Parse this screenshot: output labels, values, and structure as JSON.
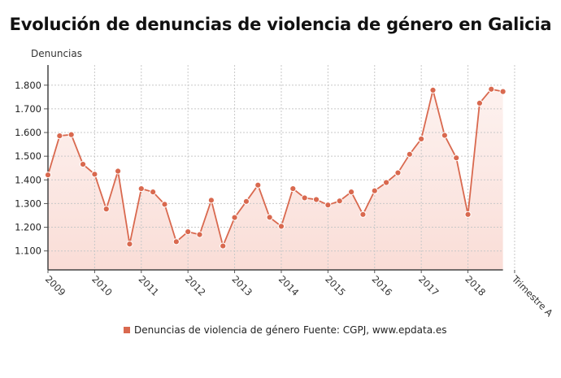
{
  "chart_data": {
    "type": "area",
    "title": "Evolución de denuncias de violencia de género en Galicia",
    "ylabel": "Denuncias",
    "xlabel": "",
    "x_tick_labels": [
      "2009",
      "2010",
      "2011",
      "2012",
      "2013",
      "2014",
      "2015",
      "2016",
      "2017",
      "2018",
      "Trimestre A"
    ],
    "y_tick_labels": [
      "1.100",
      "1.200",
      "1.300",
      "1.400",
      "1.500",
      "1.600",
      "1.700",
      "1.800"
    ],
    "y_ticks": [
      1100,
      1200,
      1300,
      1400,
      1500,
      1600,
      1700,
      1800
    ],
    "ylim": [
      1020,
      1885
    ],
    "grid": true,
    "legend_position": "bottom",
    "series": [
      {
        "name": "Denuncias de violencia de género",
        "color": "#d9694f",
        "x": [
          "2009 T1",
          "2009 T2",
          "2009 T3",
          "2009 T4",
          "2010 T1",
          "2010 T2",
          "2010 T3",
          "2010 T4",
          "2011 T1",
          "2011 T2",
          "2011 T3",
          "2011 T4",
          "2012 T1",
          "2012 T2",
          "2012 T3",
          "2012 T4",
          "2013 T1",
          "2013 T2",
          "2013 T3",
          "2013 T4",
          "2014 T1",
          "2014 T2",
          "2014 T3",
          "2014 T4",
          "2015 T1",
          "2015 T2",
          "2015 T3",
          "2015 T4",
          "2016 T1",
          "2016 T2",
          "2016 T3",
          "2016 T4",
          "2017 T1",
          "2017 T2",
          "2017 T3",
          "2017 T4",
          "2018 T1",
          "2018 T2",
          "2018 T3",
          "2018 T4"
        ],
        "values": [
          1421,
          1586,
          1591,
          1466,
          1424,
          1277,
          1437,
          1129,
          1363,
          1349,
          1297,
          1139,
          1181,
          1169,
          1314,
          1121,
          1241,
          1309,
          1378,
          1242,
          1204,
          1363,
          1324,
          1317,
          1294,
          1311,
          1349,
          1254,
          1354,
          1389,
          1430,
          1508,
          1573,
          1779,
          1588,
          1493,
          1254,
          1724,
          1783,
          1773
        ]
      }
    ],
    "source": "Fuente: CGPJ, www.epdata.es"
  }
}
